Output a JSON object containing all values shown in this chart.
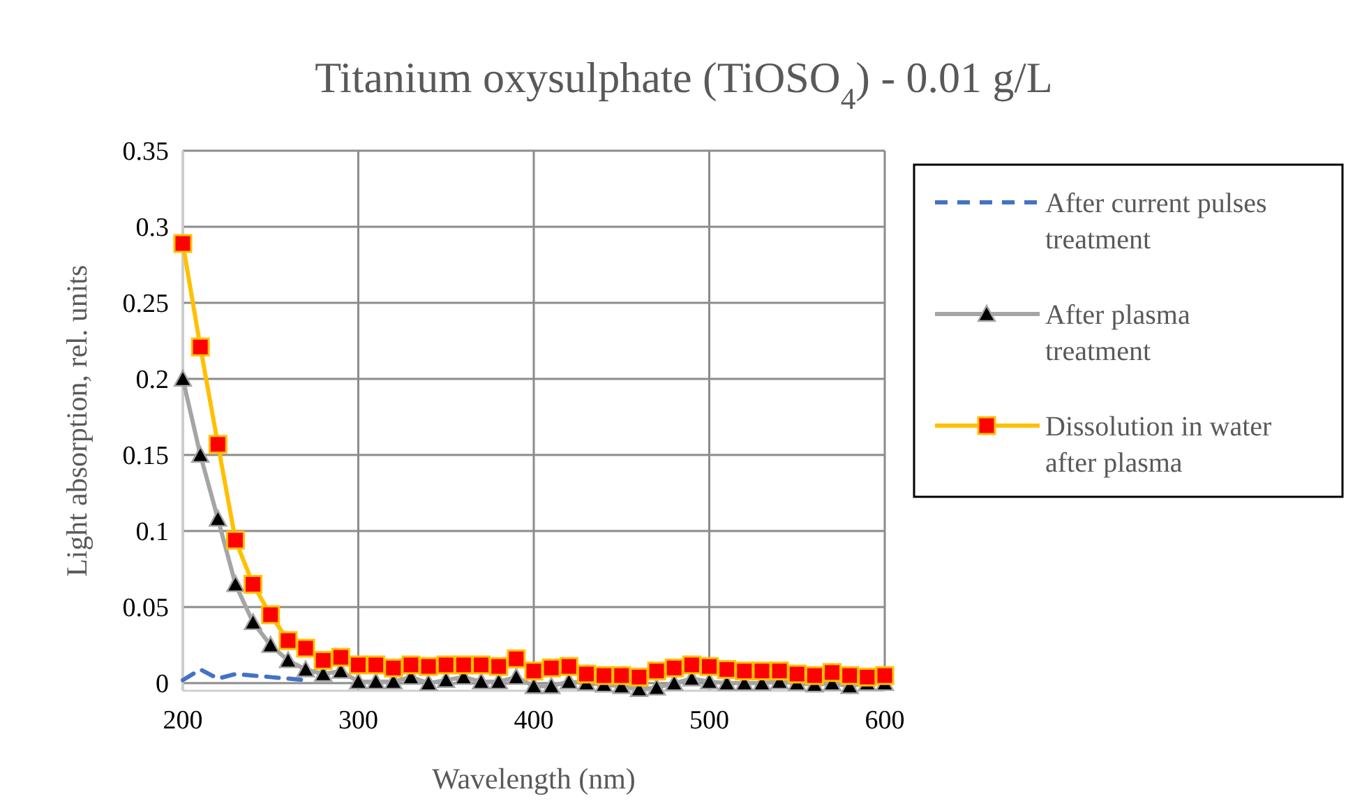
{
  "chart_data": {
    "type": "line",
    "title": "Titanium oxysulphate (TiOSO$_{4}$) - 0.01 g/L",
    "xlabel": "Wavelength (nm)",
    "ylabel": "Light absorption, rel. units",
    "x": [
      200,
      210,
      220,
      230,
      240,
      250,
      260,
      270,
      280,
      290,
      300,
      310,
      320,
      330,
      340,
      350,
      360,
      370,
      380,
      390,
      400,
      410,
      420,
      430,
      440,
      450,
      460,
      470,
      480,
      490,
      500,
      510,
      520,
      530,
      540,
      550,
      560,
      570,
      580,
      590,
      600
    ],
    "series": [
      {
        "name": "After current pulses treatment",
        "color": "#4472c4",
        "line_style": "dashed",
        "marker": "none",
        "values": [
          0.002,
          0.009,
          0.003,
          0.006,
          0.005,
          0.004,
          0.003,
          0.002,
          null,
          null,
          null,
          null,
          null,
          null,
          null,
          null,
          null,
          null,
          null,
          null,
          null,
          null,
          null,
          null,
          null,
          null,
          null,
          null,
          null,
          null,
          null,
          null,
          null,
          null,
          null,
          null,
          null,
          null,
          null,
          null,
          null
        ]
      },
      {
        "name": "After plasma treatment",
        "color": "#a5a5a5",
        "line_style": "solid",
        "marker": "triangle",
        "values": [
          0.2,
          0.15,
          0.108,
          0.065,
          0.04,
          0.025,
          0.015,
          0.009,
          0.006,
          0.008,
          0.001,
          0.001,
          0.001,
          0.004,
          0.0,
          0.002,
          0.004,
          0.001,
          0.001,
          0.004,
          -0.002,
          -0.002,
          0.001,
          0.0,
          -0.001,
          -0.002,
          -0.004,
          -0.003,
          0.0,
          0.003,
          0.001,
          0.0,
          0.0,
          0.0,
          0.001,
          0.0,
          -0.001,
          0.0,
          -0.002,
          0.0,
          0.0
        ]
      },
      {
        "name": "Dissolution in water after plasma",
        "color": "#ffc000",
        "line_style": "solid",
        "marker": "square",
        "values": [
          0.289,
          0.221,
          0.157,
          0.094,
          0.065,
          0.045,
          0.028,
          0.023,
          0.015,
          0.017,
          0.012,
          0.012,
          0.01,
          0.012,
          0.011,
          0.012,
          0.012,
          0.012,
          0.011,
          0.016,
          0.008,
          0.01,
          0.011,
          0.006,
          0.005,
          0.005,
          0.004,
          0.008,
          0.01,
          0.012,
          0.011,
          0.009,
          0.008,
          0.008,
          0.008,
          0.006,
          0.005,
          0.007,
          0.005,
          0.004,
          0.005
        ]
      }
    ],
    "xlim": [
      200,
      600
    ],
    "xticks": [
      200,
      300,
      400,
      500,
      600
    ],
    "ylim": [
      -0.005,
      0.35
    ],
    "yticks": [
      0,
      0.05,
      0.1,
      0.15,
      0.2,
      0.25,
      0.3,
      0.35
    ],
    "grid": true,
    "legend": "right"
  }
}
